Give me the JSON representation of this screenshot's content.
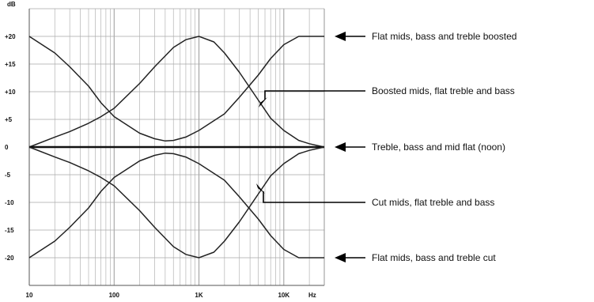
{
  "chart_data": {
    "type": "line",
    "title": "",
    "xlabel": "",
    "ylabel": "",
    "x_scale": "log",
    "xlim": [
      10,
      30000
    ],
    "ylim": [
      -25,
      25
    ],
    "grid": true,
    "y_unit_label": "dB",
    "x_unit_label": "Hz",
    "y_ticks": [
      {
        "value": 20,
        "label": "+20"
      },
      {
        "value": 15,
        "label": "+15"
      },
      {
        "value": 10,
        "label": "+10"
      },
      {
        "value": 5,
        "label": "+5"
      },
      {
        "value": 0,
        "label": "0"
      },
      {
        "value": -5,
        "label": "-5"
      },
      {
        "value": -10,
        "label": "-10"
      },
      {
        "value": -15,
        "label": "-15"
      },
      {
        "value": -20,
        "label": "-20"
      }
    ],
    "x_ticks": [
      {
        "value": 10,
        "label": "10"
      },
      {
        "value": 100,
        "label": "100"
      },
      {
        "value": 1000,
        "label": "1K"
      },
      {
        "value": 10000,
        "label": "10K"
      }
    ],
    "series": [
      {
        "key": "bass_treble_boost",
        "color": "#222222",
        "x": [
          10,
          20,
          30,
          50,
          70,
          100,
          200,
          300,
          400,
          500,
          700,
          1000,
          2000,
          3000,
          5000,
          7000,
          10000,
          15000,
          20000,
          30000
        ],
        "y": [
          20,
          17,
          14.5,
          11,
          8,
          5.5,
          2.5,
          1.5,
          1.1,
          1.2,
          1.8,
          3,
          6,
          9,
          13,
          16,
          18.5,
          20,
          20,
          20
        ]
      },
      {
        "key": "mid_boost",
        "color": "#222222",
        "x": [
          10,
          20,
          30,
          50,
          70,
          100,
          200,
          300,
          500,
          700,
          1000,
          1500,
          2000,
          3000,
          5000,
          7000,
          10000,
          15000,
          20000,
          30000
        ],
        "y": [
          0,
          1.8,
          2.8,
          4.3,
          5.5,
          7,
          11.5,
          14.5,
          18,
          19.4,
          20,
          19,
          17,
          13.5,
          8.5,
          5.2,
          3,
          1.2,
          0.6,
          0
        ]
      },
      {
        "key": "flat",
        "color": "#111111",
        "x": [
          10,
          30000
        ],
        "y": [
          0,
          0
        ]
      },
      {
        "key": "mid_cut",
        "color": "#222222",
        "x": [
          10,
          20,
          30,
          50,
          70,
          100,
          200,
          300,
          500,
          700,
          1000,
          1500,
          2000,
          3000,
          5000,
          7000,
          10000,
          15000,
          20000,
          30000
        ],
        "y": [
          0,
          -1.8,
          -2.8,
          -4.3,
          -5.5,
          -7,
          -11.5,
          -14.5,
          -18,
          -19.4,
          -20,
          -19,
          -17,
          -13.5,
          -8.5,
          -5.2,
          -3,
          -1.2,
          -0.6,
          0
        ]
      },
      {
        "key": "bass_treble_cut",
        "color": "#222222",
        "x": [
          10,
          20,
          30,
          50,
          70,
          100,
          200,
          300,
          400,
          500,
          700,
          1000,
          2000,
          3000,
          5000,
          7000,
          10000,
          15000,
          20000,
          30000
        ],
        "y": [
          -20,
          -17,
          -14.5,
          -11,
          -8,
          -5.5,
          -2.5,
          -1.5,
          -1.1,
          -1.2,
          -1.8,
          -3,
          -6,
          -9,
          -13,
          -16,
          -18.5,
          -20,
          -20,
          -20
        ]
      }
    ],
    "annotations": [
      {
        "text": "Flat mids, bass and treble boosted",
        "points_to": "bass_treble_boost"
      },
      {
        "text": "Boosted mids, flat treble and bass",
        "points_to": "mid_boost"
      },
      {
        "text": "Treble, bass and mid flat (noon)",
        "points_to": "flat"
      },
      {
        "text": "Cut mids, flat treble and bass",
        "points_to": "mid_cut"
      },
      {
        "text": "Flat mids, bass and treble cut",
        "points_to": "bass_treble_cut"
      }
    ]
  }
}
